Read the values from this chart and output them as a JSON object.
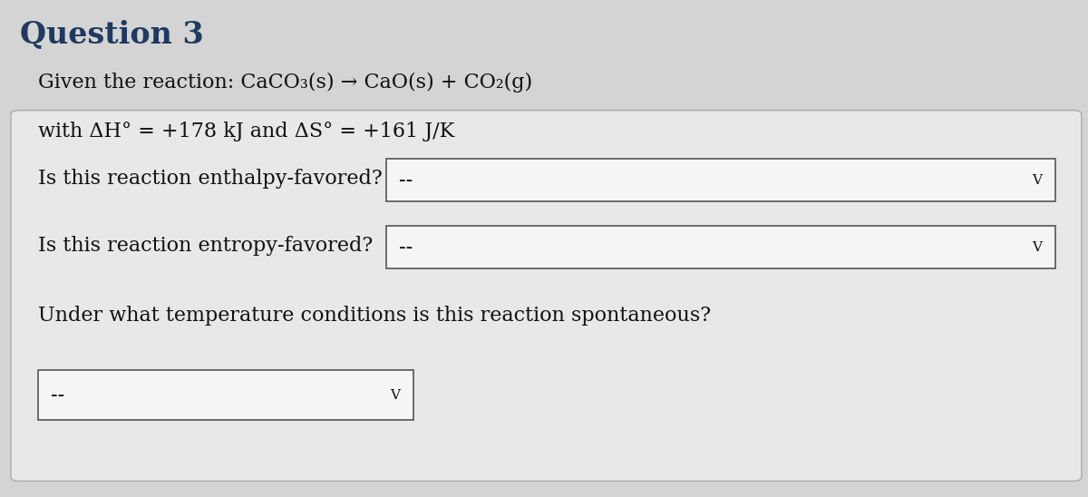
{
  "title": "Question 3",
  "title_color": "#1e3a5f",
  "title_fontsize": 24,
  "page_bg_color": "#d4d4d4",
  "card_bg_color": "#e8e8e8",
  "card_border_color": "#aaaaaa",
  "line1": "Given the reaction: CaCO₃(s) → CaO(s) + CO₂(g)",
  "line2": "with ΔH° = +178 kJ and ΔS° = +161 J/K",
  "line3_label": "Is this reaction enthalpy-favored?",
  "line4_label": "Is this reaction entropy-favored?",
  "line5_label": "Under what temperature conditions is this reaction spontaneous?",
  "dropdown_text": "--",
  "dropdown_color": "#f5f5f5",
  "dropdown_border_color": "#555555",
  "text_color": "#111111",
  "text_fontsize": 16,
  "chevron": "V"
}
